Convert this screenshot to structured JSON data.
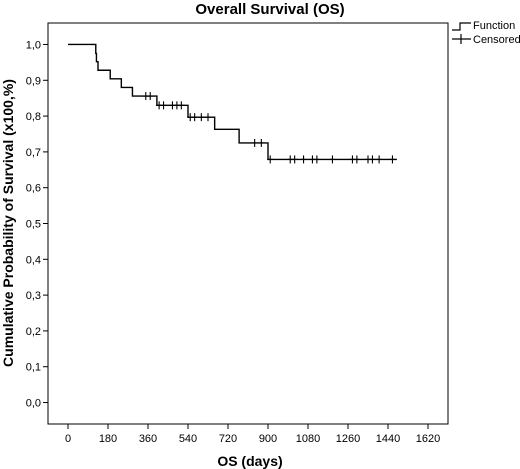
{
  "chart_data": {
    "type": "line",
    "title": "Overall Survival (OS)",
    "xlabel": "OS (days)",
    "ylabel": "Cumulative Probability of Survival (x100,%)",
    "xlim": [
      -90,
      1710
    ],
    "ylim": [
      -0.06,
      1.06
    ],
    "xticks": [
      0,
      180,
      360,
      540,
      720,
      900,
      1080,
      1260,
      1440,
      1620
    ],
    "xtick_labels": [
      "0",
      "180",
      "360",
      "540",
      "720",
      "900",
      "1080",
      "1260",
      "1440",
      "1620"
    ],
    "yticks": [
      0.0,
      0.1,
      0.2,
      0.3,
      0.4,
      0.5,
      0.6,
      0.7,
      0.8,
      0.9,
      1.0
    ],
    "ytick_labels": [
      "0,0",
      "0,1",
      "0,2",
      "0,3",
      "0,4",
      "0,5",
      "0,6",
      "0,7",
      "0,8",
      "0,9",
      "1,0"
    ],
    "grid": false,
    "legend_position": "top-right",
    "series": [
      {
        "name": "Function",
        "line_color": "#000000",
        "steps": [
          {
            "x": 0,
            "y": 1.0
          },
          {
            "x": 125,
            "y": 0.975
          },
          {
            "x": 128,
            "y": 0.952
          },
          {
            "x": 135,
            "y": 0.928
          },
          {
            "x": 190,
            "y": 0.904
          },
          {
            "x": 240,
            "y": 0.88
          },
          {
            "x": 290,
            "y": 0.856
          },
          {
            "x": 400,
            "y": 0.83
          },
          {
            "x": 540,
            "y": 0.797
          },
          {
            "x": 660,
            "y": 0.763
          },
          {
            "x": 770,
            "y": 0.725
          },
          {
            "x": 900,
            "y": 0.679
          }
        ],
        "end_x": 1480
      },
      {
        "name": "Censored",
        "marker": "plus",
        "points": [
          {
            "x": 350,
            "y": 0.856
          },
          {
            "x": 370,
            "y": 0.856
          },
          {
            "x": 410,
            "y": 0.83
          },
          {
            "x": 430,
            "y": 0.83
          },
          {
            "x": 470,
            "y": 0.83
          },
          {
            "x": 490,
            "y": 0.83
          },
          {
            "x": 510,
            "y": 0.83
          },
          {
            "x": 550,
            "y": 0.797
          },
          {
            "x": 570,
            "y": 0.797
          },
          {
            "x": 600,
            "y": 0.797
          },
          {
            "x": 630,
            "y": 0.797
          },
          {
            "x": 840,
            "y": 0.725
          },
          {
            "x": 870,
            "y": 0.725
          },
          {
            "x": 910,
            "y": 0.679
          },
          {
            "x": 1000,
            "y": 0.679
          },
          {
            "x": 1020,
            "y": 0.679
          },
          {
            "x": 1060,
            "y": 0.679
          },
          {
            "x": 1100,
            "y": 0.679
          },
          {
            "x": 1120,
            "y": 0.679
          },
          {
            "x": 1190,
            "y": 0.679
          },
          {
            "x": 1280,
            "y": 0.679
          },
          {
            "x": 1300,
            "y": 0.679
          },
          {
            "x": 1350,
            "y": 0.679
          },
          {
            "x": 1370,
            "y": 0.679
          },
          {
            "x": 1400,
            "y": 0.679
          },
          {
            "x": 1460,
            "y": 0.679
          }
        ]
      }
    ]
  }
}
